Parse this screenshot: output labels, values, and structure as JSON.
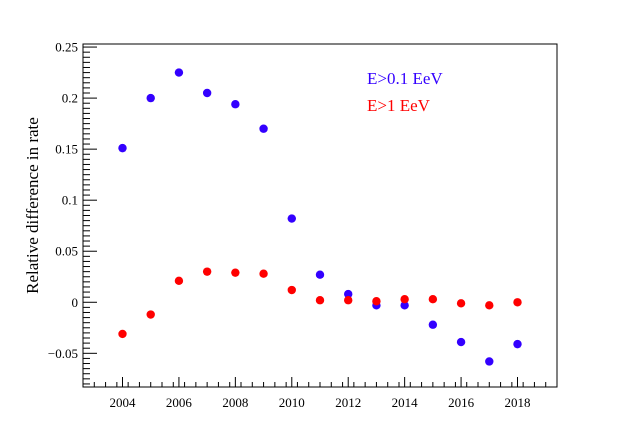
{
  "chart_data": {
    "type": "scatter",
    "title": "",
    "xlabel": "",
    "ylabel": "Relative difference in rate",
    "xlim": [
      2002.6,
      2019.4
    ],
    "ylim": [
      -0.083,
      0.253
    ],
    "x_ticks": [
      2004,
      2006,
      2008,
      2010,
      2012,
      2014,
      2016,
      2018
    ],
    "x_tick_labels": [
      "2004",
      "2006",
      "2008",
      "2010",
      "2012",
      "2014",
      "2016",
      "2018"
    ],
    "y_ticks": [
      -0.05,
      0,
      0.05,
      0.1,
      0.15,
      0.2,
      0.25
    ],
    "y_tick_labels": [
      "−0.05",
      "0",
      "0.05",
      "0.1",
      "0.15",
      "0.2",
      "0.25"
    ],
    "grid": false,
    "legend_position": "top-right",
    "x": [
      2004,
      2005,
      2006,
      2007,
      2008,
      2009,
      2010,
      2011,
      2012,
      2013,
      2014,
      2015,
      2016,
      2017,
      2018
    ],
    "series": [
      {
        "name": "E>0.1 EeV",
        "color": "#3300ff",
        "values": [
          0.151,
          0.2,
          0.225,
          0.205,
          0.194,
          0.17,
          0.082,
          0.027,
          0.008,
          -0.003,
          -0.003,
          -0.022,
          -0.039,
          -0.058,
          -0.041
        ]
      },
      {
        "name": "E>1 EeV",
        "color": "#ff0000",
        "values": [
          -0.031,
          -0.012,
          0.021,
          0.03,
          0.029,
          0.028,
          0.012,
          0.002,
          0.002,
          0.001,
          0.003,
          0.003,
          -0.001,
          -0.003,
          0.0
        ]
      }
    ]
  }
}
